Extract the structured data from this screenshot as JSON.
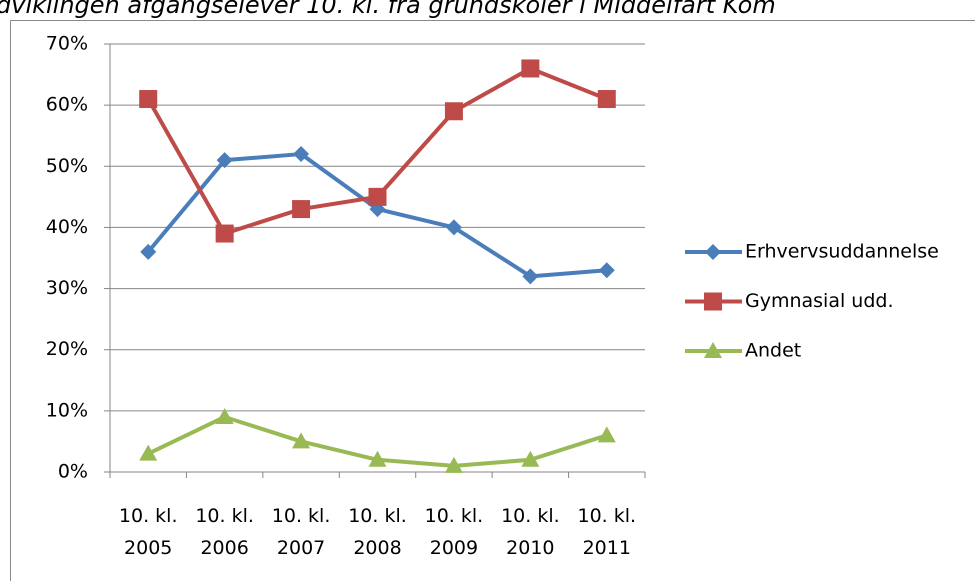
{
  "chart_data": {
    "type": "line",
    "title": "dviklingen afgangselever 10. kl. fra grundskoler i Middelfart Kom",
    "categories": [
      "10. kl. 2005",
      "10. kl. 2006",
      "10. kl. 2007",
      "10. kl. 2008",
      "10. kl. 2009",
      "10. kl. 2010",
      "10. kl. 2011"
    ],
    "series": [
      {
        "name": "Erhvervsuddannelse",
        "color": "#4a7ebb",
        "marker": "diamond",
        "values": [
          36,
          51,
          52,
          43,
          40,
          32,
          33
        ]
      },
      {
        "name": "Gymnasial udd.",
        "color": "#be4b48",
        "marker": "square",
        "values": [
          61,
          39,
          43,
          45,
          59,
          66,
          61
        ]
      },
      {
        "name": "Andet",
        "color": "#98b954",
        "marker": "triangle",
        "values": [
          3,
          9,
          5,
          2,
          1,
          2,
          6
        ]
      }
    ],
    "ylim": [
      0,
      70
    ],
    "yticks": [
      {
        "value": 0,
        "label": "0%"
      },
      {
        "value": 10,
        "label": "10%"
      },
      {
        "value": 20,
        "label": "20%"
      },
      {
        "value": 30,
        "label": "30%"
      },
      {
        "value": 40,
        "label": "40%"
      },
      {
        "value": 50,
        "label": "50%"
      },
      {
        "value": 60,
        "label": "60%"
      },
      {
        "value": 70,
        "label": "70%"
      }
    ],
    "grid": true,
    "legend": "right"
  }
}
